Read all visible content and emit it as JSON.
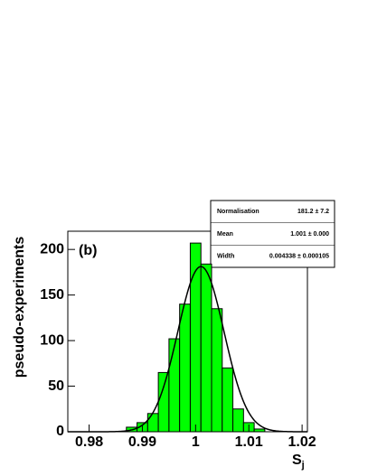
{
  "chart_data": {
    "type": "histogram",
    "panel_label": "(b)",
    "y_label": "pseudo-experiments",
    "x_label": "S",
    "x_label_subscript": "j",
    "bins": [
      0.987,
      0.989,
      0.991,
      0.993,
      0.995,
      0.997,
      0.999,
      1.001,
      1.003,
      1.005,
      1.007,
      1.009,
      1.011,
      1.013
    ],
    "values": [
      5,
      10,
      20,
      65,
      102,
      140,
      207,
      184,
      135,
      70,
      25,
      10,
      3
    ],
    "color": "#00ff00",
    "xlim": [
      0.976,
      1.021
    ],
    "xticks": [
      0.98,
      0.99,
      {
        "value": 1.0,
        "label": "1"
      },
      1.01,
      1.02
    ],
    "ylim": [
      0,
      220
    ],
    "yticks": [
      0,
      50,
      100,
      150,
      200
    ],
    "stats": [
      {
        "name": "Normalisation",
        "value": 181.2,
        "error": 7.2,
        "label": "181.2 ± 7.2"
      },
      {
        "name": "Mean",
        "value": 1.001,
        "error": 0.0,
        "label": "1.001 ± 0.000"
      },
      {
        "name": "Width",
        "value": 0.004338,
        "error": 0.000105,
        "label": "0.004338 ± 0.000105"
      }
    ]
  }
}
